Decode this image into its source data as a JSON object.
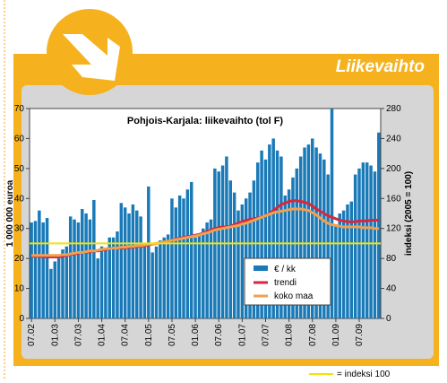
{
  "header": {
    "title": "Liikevaihto"
  },
  "chart_data": {
    "type": "bar",
    "title": "Pohjois-Karjala: liikevaihto (tol F)",
    "ylabel": "1 000 000 euroa",
    "y2label": "indeksi (2005 = 100)",
    "categories": [
      "07.02",
      null,
      null,
      null,
      null,
      null,
      "01.03",
      null,
      null,
      null,
      null,
      null,
      "07.03",
      null,
      null,
      null,
      null,
      null,
      "01.04",
      null,
      null,
      null,
      null,
      null,
      "07.04",
      null,
      null,
      null,
      null,
      null,
      "01.05",
      null,
      null,
      null,
      null,
      null,
      "07.05",
      null,
      null,
      null,
      null,
      null,
      "01.06",
      null,
      null,
      null,
      null,
      null,
      "07.06",
      null,
      null,
      null,
      null,
      null,
      "01.07",
      null,
      null,
      null,
      null,
      null,
      "07.07",
      null,
      null,
      null,
      null,
      null,
      "01.08",
      null,
      null,
      null,
      null,
      null,
      "07.08",
      null,
      null,
      null,
      null,
      null,
      "01.09",
      null,
      null,
      null,
      null,
      null,
      "07.09",
      null,
      null,
      null,
      null,
      null
    ],
    "series": [
      {
        "name": "€ / kk",
        "color": "#1a7ab8",
        "values": [
          32,
          32.5,
          36,
          32,
          33.5,
          16.5,
          19,
          21,
          23,
          24,
          34,
          33,
          32,
          36.5,
          35,
          33,
          39.5,
          20,
          24,
          23,
          27,
          27,
          29,
          38.5,
          37,
          35,
          38,
          36,
          34,
          25,
          44,
          22,
          24,
          26,
          27,
          28,
          40,
          37,
          41,
          40,
          43,
          45.5,
          27,
          28,
          30,
          32,
          33,
          50,
          49,
          51,
          54,
          46,
          42,
          36,
          38,
          40,
          42,
          46,
          52,
          56,
          53,
          58,
          60,
          56,
          54,
          41,
          43,
          47,
          50,
          54,
          57,
          58,
          60,
          57,
          55,
          53,
          48,
          70,
          31,
          35,
          36,
          38,
          39,
          48,
          50,
          52,
          52,
          51,
          49,
          62
        ]
      },
      {
        "name": "trendi",
        "color": "#d7263d",
        "axis": "y2",
        "values": [
          83,
          83,
          83,
          82,
          82,
          82,
          82,
          82,
          83,
          84,
          85,
          86,
          87,
          88,
          88,
          89,
          90,
          90,
          91,
          92,
          93,
          94,
          94,
          94,
          94,
          95,
          95,
          96,
          96,
          97,
          98,
          99,
          100,
          101,
          102,
          103,
          104,
          106,
          107,
          108,
          109,
          110,
          111,
          112,
          114,
          116,
          118,
          120,
          121,
          122,
          122,
          123,
          125,
          127,
          129,
          131,
          132,
          133,
          134,
          135,
          137,
          140,
          144,
          148,
          152,
          154,
          156,
          157,
          157,
          156,
          155,
          153,
          150,
          146,
          143,
          140,
          137,
          135,
          133,
          131,
          130,
          129,
          129,
          129,
          130,
          130,
          130,
          131,
          131,
          131
        ]
      },
      {
        "name": "koko maa",
        "color": "#f0a050",
        "axis": "y2",
        "values": [
          84,
          84,
          84,
          84,
          84,
          84,
          84,
          84,
          85,
          85,
          86,
          87,
          88,
          88,
          89,
          90,
          90,
          91,
          92,
          93,
          93,
          94,
          94,
          95,
          95,
          96,
          96,
          97,
          97,
          98,
          99,
          99,
          100,
          101,
          102,
          103,
          104,
          105,
          106,
          107,
          108,
          109,
          110,
          111,
          113,
          114,
          116,
          118,
          119,
          120,
          121,
          122,
          123,
          124,
          126,
          127,
          129,
          131,
          133,
          135,
          137,
          139,
          141,
          142,
          143,
          144,
          145,
          146,
          146,
          146,
          145,
          144,
          141,
          138,
          134,
          130,
          127,
          125,
          124,
          123,
          122,
          122,
          122,
          122,
          122,
          121,
          121,
          121,
          120,
          120
        ]
      }
    ],
    "reference": {
      "value": 100,
      "axis": "y2",
      "color": "#f2e400",
      "label": "= indeksi 100"
    },
    "ylim": [
      0,
      70
    ],
    "yticks": [
      0,
      10,
      20,
      30,
      40,
      50,
      60,
      70
    ],
    "y2lim": [
      0,
      280
    ],
    "y2ticks": [
      0,
      40,
      80,
      120,
      160,
      200,
      240,
      280
    ]
  }
}
